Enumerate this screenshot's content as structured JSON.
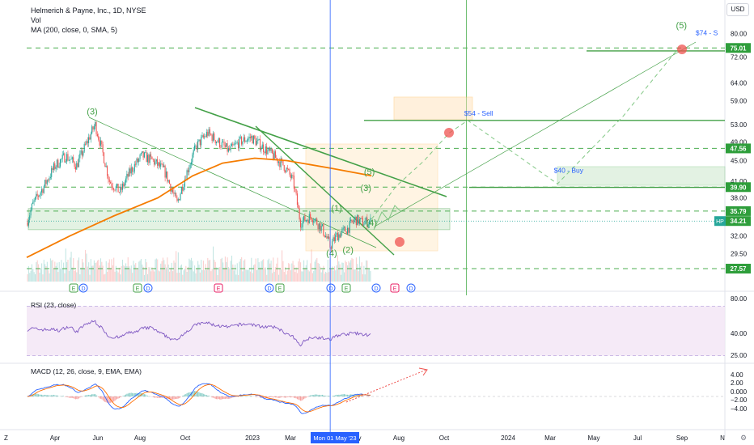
{
  "header": {
    "title": "Helmerich & Payne, Inc., 1D, NYSE",
    "vol": "Vol",
    "ma": "MA (200, close, 0, SMA, 5)"
  },
  "currency": "USD",
  "rsi_label": "RSI (23, close)",
  "macd_label": "MACD (12, 26, close, 9, EMA, EMA)",
  "crosshair_date": "Mon 01 May '23",
  "bottom_left": "Z",
  "x_ticks": [
    "Apr",
    "Jun",
    "Aug",
    "Oct",
    "2023",
    "Mar",
    "May",
    "Aug",
    "Oct",
    "2024",
    "Mar",
    "May",
    "Jul",
    "Sep",
    "N"
  ],
  "price_ticks": [
    "80.00",
    "72.00",
    "64.00",
    "59.00",
    "53.00",
    "49.00",
    "45.00",
    "41.00",
    "38.00",
    "32.00",
    "29.50"
  ],
  "rsi_ticks": [
    "80.00",
    "40.00",
    "25.00"
  ],
  "macd_ticks": [
    "4.00",
    "2.00",
    "0.000",
    "−2.00",
    "−4.00"
  ],
  "price_badges": [
    {
      "text": "75.01",
      "price": 75.01,
      "color": "#2e9e3b"
    },
    {
      "text": "47.56",
      "price": 47.56,
      "color": "#2e9e3b"
    },
    {
      "text": "39.90",
      "price": 39.9,
      "color": "#2e9e3b"
    },
    {
      "text": "35.79",
      "price": 35.79,
      "color": "#2e9e3b"
    },
    {
      "text": "34.21",
      "price": 34.21,
      "color": "#2e9e3b"
    },
    {
      "text": "27.57",
      "price": 27.57,
      "color": "#2e9e3b"
    }
  ],
  "symbol_badge": "HP",
  "wave_labels": [
    {
      "text": "(3)",
      "date": "2022-06-01",
      "price": 55.5
    },
    {
      "text": "(5)",
      "date": "2024-09-05",
      "price": 82
    },
    {
      "text": "(5)",
      "date": "2023-06-25",
      "price": 42.2
    },
    {
      "text": "(3)",
      "date": "2023-06-20",
      "price": 39.2
    },
    {
      "text": "(1)",
      "date": "2023-05-10",
      "price": 35.8
    },
    {
      "text": "(4)",
      "date": "2023-06-28",
      "price": 33.5
    },
    {
      "text": "(4)",
      "date": "2023-05-03",
      "price": 29.2
    },
    {
      "text": "(2)",
      "date": "2023-05-26",
      "price": 29.6
    }
  ],
  "annotations": [
    {
      "text": "$54 - Sell",
      "date": "2023-11-05",
      "price": 55.2,
      "color": "#2962ff"
    },
    {
      "text": "$40 - Buy",
      "date": "2024-03-10",
      "price": 42.6,
      "color": "#2962ff"
    },
    {
      "text": "$74 - S",
      "date": "2024-09-25",
      "price": 79.5,
      "color": "#2962ff"
    }
  ],
  "event_markers": [
    "E",
    "D",
    "E",
    "D",
    "E",
    "D",
    "E",
    "D",
    "E",
    "D",
    "E",
    "D",
    "E",
    "E",
    "D"
  ],
  "colors": {
    "up": "#26a69a",
    "down": "#ef5350",
    "ma": "#f57c00",
    "trend": "#43a047",
    "dash": "#4caf50",
    "rsi": "#7e57c2",
    "rsi_band": "#f3e5f5",
    "macd": "#2962ff",
    "signal": "#ff6d00",
    "crosshair": "#2962ff",
    "target": "#ef5350"
  },
  "chart_data": {
    "type": "candlestick",
    "symbol": "HP",
    "exchange": "NYSE",
    "interval": "1D",
    "last_price": 34.21,
    "y_scale": "log",
    "ylim": [
      26,
      86
    ],
    "x_range": [
      "2022-03-01",
      "2024-11-05"
    ],
    "horizontal_levels": [
      75.01,
      47.56,
      39.9,
      35.79,
      27.57
    ],
    "sell_target": 54,
    "buy_target": 40,
    "final_target": 74,
    "price_path": [
      [
        "2022-03-01",
        34
      ],
      [
        "2022-03-10",
        37
      ],
      [
        "2022-03-25",
        40
      ],
      [
        "2022-04-10",
        44
      ],
      [
        "2022-04-25",
        46
      ],
      [
        "2022-05-10",
        44
      ],
      [
        "2022-05-25",
        49
      ],
      [
        "2022-06-05",
        53
      ],
      [
        "2022-06-15",
        47
      ],
      [
        "2022-06-25",
        41
      ],
      [
        "2022-07-10",
        39
      ],
      [
        "2022-07-25",
        43
      ],
      [
        "2022-08-10",
        46
      ],
      [
        "2022-08-25",
        45
      ],
      [
        "2022-09-10",
        43
      ],
      [
        "2022-09-28",
        37
      ],
      [
        "2022-10-10",
        42
      ],
      [
        "2022-10-25",
        48
      ],
      [
        "2022-11-10",
        51
      ],
      [
        "2022-11-25",
        49
      ],
      [
        "2022-12-10",
        47
      ],
      [
        "2022-12-25",
        49
      ],
      [
        "2023-01-10",
        50
      ],
      [
        "2023-01-25",
        48
      ],
      [
        "2023-02-10",
        46
      ],
      [
        "2023-02-25",
        44
      ],
      [
        "2023-03-10",
        41
      ],
      [
        "2023-03-20",
        34
      ],
      [
        "2023-04-05",
        35
      ],
      [
        "2023-04-20",
        33
      ],
      [
        "2023-05-01",
        30.5
      ],
      [
        "2023-05-10",
        32
      ],
      [
        "2023-05-25",
        33
      ],
      [
        "2023-06-05",
        34.5
      ],
      [
        "2023-06-15",
        34
      ],
      [
        "2023-06-28",
        34.2
      ]
    ],
    "ma200": [
      [
        "2022-03-01",
        29
      ],
      [
        "2022-05-01",
        32
      ],
      [
        "2022-07-01",
        35
      ],
      [
        "2022-09-01",
        38
      ],
      [
        "2022-10-20",
        42
      ],
      [
        "2022-12-01",
        44.5
      ],
      [
        "2023-01-15",
        45.5
      ],
      [
        "2023-03-01",
        45
      ],
      [
        "2023-05-01",
        43.5
      ],
      [
        "2023-06-28",
        42
      ]
    ],
    "projection": [
      [
        "2023-06-28",
        34.5
      ],
      [
        "2023-08-01",
        40
      ],
      [
        "2023-09-10",
        45
      ],
      [
        "2023-10-15",
        51
      ],
      [
        "2023-11-10",
        54
      ],
      [
        "2024-01-10",
        47
      ],
      [
        "2024-03-15",
        40.5
      ],
      [
        "2024-06-15",
        55
      ],
      [
        "2024-09-01",
        75
      ]
    ],
    "rsi": {
      "ylim": [
        20,
        85
      ],
      "bands": [
        30,
        70
      ],
      "last": 48
    },
    "macd": {
      "ylim": [
        -5.5,
        5.5
      ]
    }
  }
}
